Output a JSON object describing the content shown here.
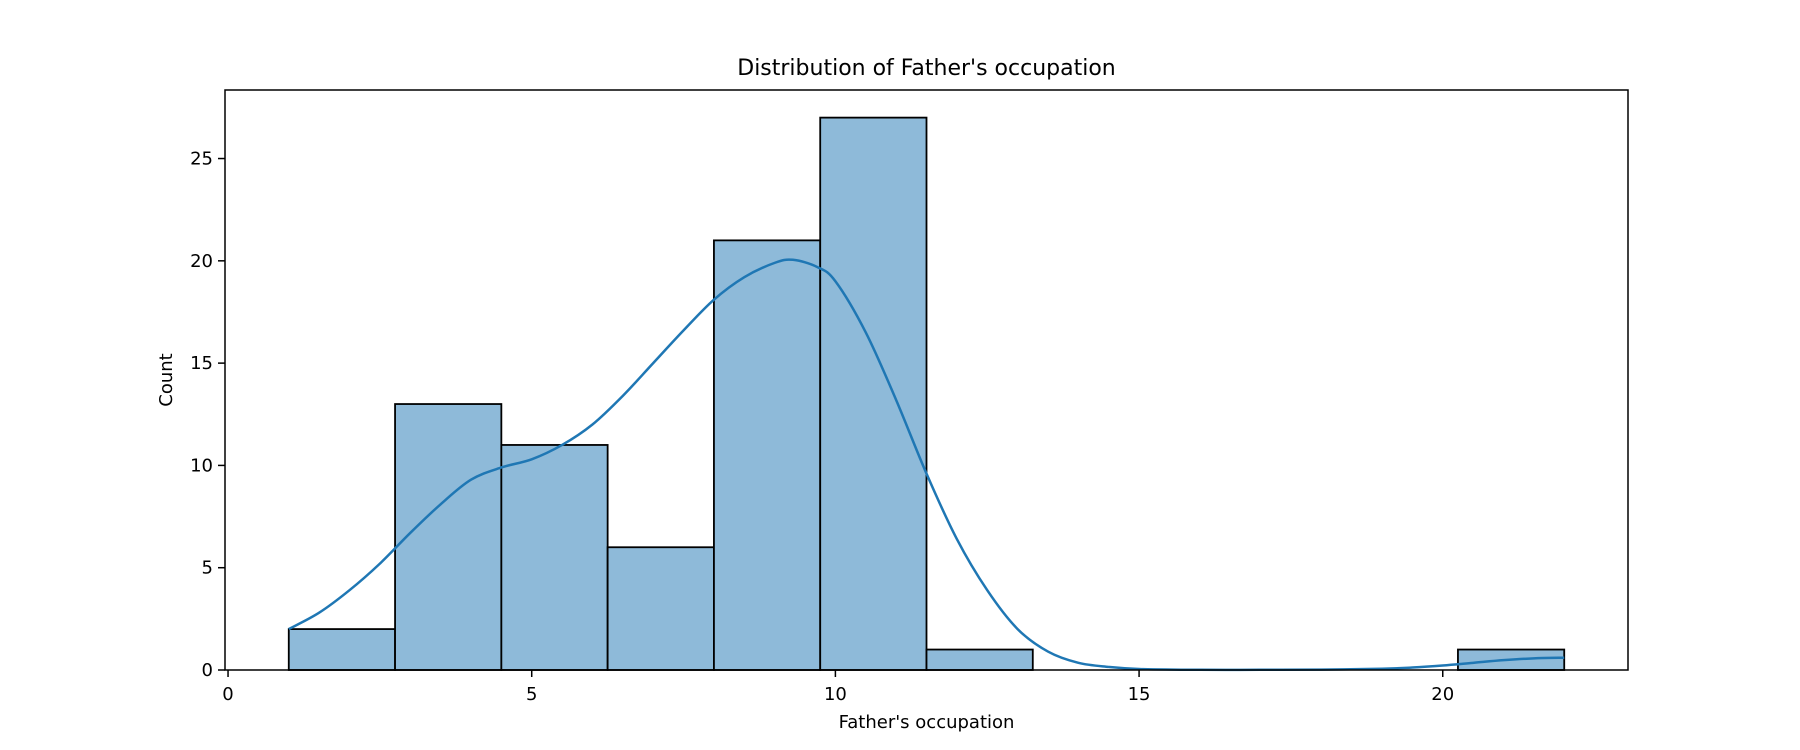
{
  "chart_data": {
    "type": "bar",
    "title": "Distribution of Father's occupation",
    "xlabel": "Father's occupation",
    "ylabel": "Count",
    "xlim": [
      -0.05,
      23.05
    ],
    "ylim": [
      0,
      28.35
    ],
    "xticks": [
      0,
      5,
      10,
      15,
      20
    ],
    "yticks": [
      0,
      5,
      10,
      15,
      20,
      25
    ],
    "grid": false,
    "bins": [
      {
        "x0": 1.0,
        "x1": 2.75,
        "count": 2
      },
      {
        "x0": 2.75,
        "x1": 4.5,
        "count": 13
      },
      {
        "x0": 4.5,
        "x1": 6.25,
        "count": 11
      },
      {
        "x0": 6.25,
        "x1": 8.0,
        "count": 6
      },
      {
        "x0": 8.0,
        "x1": 9.75,
        "count": 21
      },
      {
        "x0": 9.75,
        "x1": 11.5,
        "count": 27
      },
      {
        "x0": 11.5,
        "x1": 13.25,
        "count": 1
      },
      {
        "x0": 13.25,
        "x1": 15.0,
        "count": 0
      },
      {
        "x0": 15.0,
        "x1": 16.75,
        "count": 0
      },
      {
        "x0": 16.75,
        "x1": 18.5,
        "count": 0
      },
      {
        "x0": 18.5,
        "x1": 20.25,
        "count": 0
      },
      {
        "x0": 20.25,
        "x1": 22.0,
        "count": 1
      }
    ],
    "kde": {
      "x": [
        1.0,
        1.5,
        2.0,
        2.5,
        3.0,
        3.5,
        4.0,
        4.5,
        5.0,
        5.5,
        6.0,
        6.5,
        7.0,
        7.5,
        8.0,
        8.5,
        9.0,
        9.3,
        9.7,
        10.0,
        10.5,
        11.0,
        11.5,
        12.0,
        12.5,
        13.0,
        13.5,
        14.0,
        14.5,
        15.0,
        16.0,
        17.0,
        18.0,
        19.0,
        19.5,
        20.0,
        20.5,
        21.0,
        21.5,
        22.0
      ],
      "y": [
        2.0,
        2.8,
        3.9,
        5.2,
        6.7,
        8.1,
        9.3,
        9.9,
        10.3,
        11.0,
        12.0,
        13.4,
        15.0,
        16.6,
        18.1,
        19.2,
        19.9,
        20.05,
        19.7,
        19.0,
        16.5,
        13.2,
        9.6,
        6.4,
        3.9,
        2.0,
        0.9,
        0.35,
        0.15,
        0.05,
        0.01,
        0.01,
        0.02,
        0.06,
        0.12,
        0.22,
        0.35,
        0.48,
        0.57,
        0.6
      ]
    },
    "colors": {
      "bar_fill": "#8ebad9",
      "bar_edge": "#000000",
      "kde_line": "#1f77b4",
      "axes": "#000000",
      "background": "#ffffff"
    }
  }
}
